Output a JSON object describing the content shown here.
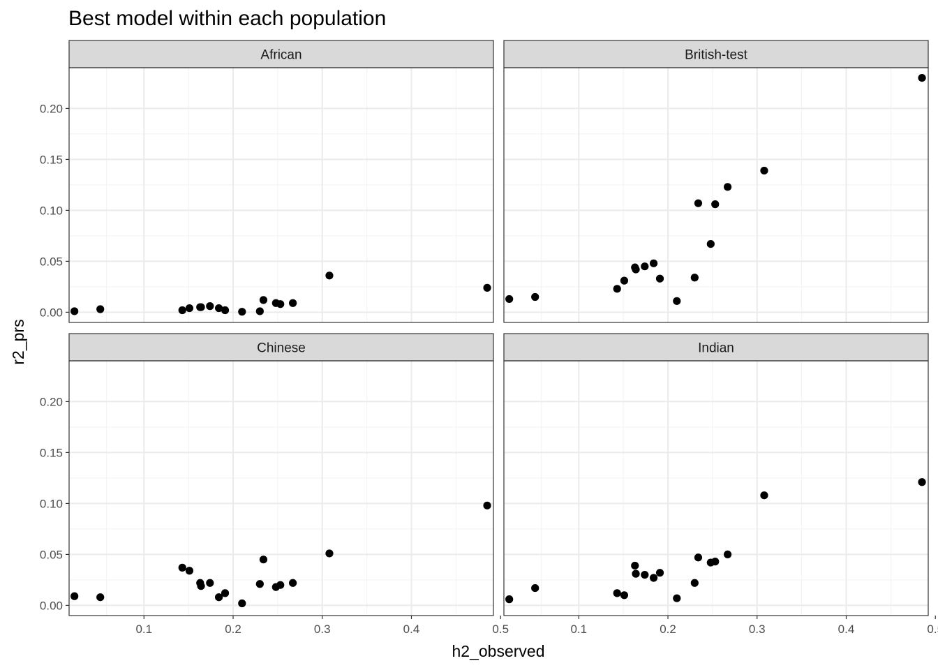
{
  "chart_data": {
    "type": "scatter",
    "title": "Best model within each population",
    "xlabel": "h2_observed",
    "ylabel": "r2_prs",
    "xlim": [
      0.016,
      0.492
    ],
    "ylim": [
      -0.01,
      0.24
    ],
    "x_ticks": [
      0.1,
      0.2,
      0.3,
      0.4,
      0.5
    ],
    "x_tick_labels": [
      "0.1",
      "0.2",
      "0.3",
      "0.4",
      "0.5"
    ],
    "y_ticks": [
      0.0,
      0.05,
      0.1,
      0.15,
      0.2
    ],
    "y_tick_labels": [
      "0.00",
      "0.05",
      "0.10",
      "0.15",
      "0.20"
    ],
    "grid": true,
    "facets": [
      {
        "label": "African",
        "points": [
          [
            0.022,
            0.001
          ],
          [
            0.051,
            0.003
          ],
          [
            0.143,
            0.002
          ],
          [
            0.151,
            0.004
          ],
          [
            0.163,
            0.005
          ],
          [
            0.164,
            0.005
          ],
          [
            0.174,
            0.006
          ],
          [
            0.184,
            0.004
          ],
          [
            0.191,
            0.002
          ],
          [
            0.21,
            0.0005
          ],
          [
            0.23,
            0.001
          ],
          [
            0.234,
            0.012
          ],
          [
            0.248,
            0.009
          ],
          [
            0.253,
            0.008
          ],
          [
            0.267,
            0.009
          ],
          [
            0.308,
            0.036
          ],
          [
            0.485,
            0.024
          ]
        ]
      },
      {
        "label": "British-test",
        "points": [
          [
            0.022,
            0.013
          ],
          [
            0.051,
            0.015
          ],
          [
            0.143,
            0.023
          ],
          [
            0.151,
            0.031
          ],
          [
            0.163,
            0.044
          ],
          [
            0.164,
            0.042
          ],
          [
            0.174,
            0.045
          ],
          [
            0.184,
            0.048
          ],
          [
            0.191,
            0.033
          ],
          [
            0.21,
            0.011
          ],
          [
            0.23,
            0.034
          ],
          [
            0.234,
            0.107
          ],
          [
            0.248,
            0.067
          ],
          [
            0.253,
            0.106
          ],
          [
            0.267,
            0.123
          ],
          [
            0.308,
            0.139
          ],
          [
            0.485,
            0.23
          ]
        ]
      },
      {
        "label": "Chinese",
        "points": [
          [
            0.022,
            0.009
          ],
          [
            0.051,
            0.008
          ],
          [
            0.143,
            0.037
          ],
          [
            0.151,
            0.034
          ],
          [
            0.163,
            0.022
          ],
          [
            0.164,
            0.019
          ],
          [
            0.174,
            0.022
          ],
          [
            0.184,
            0.008
          ],
          [
            0.191,
            0.012
          ],
          [
            0.21,
            0.002
          ],
          [
            0.23,
            0.021
          ],
          [
            0.234,
            0.045
          ],
          [
            0.248,
            0.018
          ],
          [
            0.253,
            0.02
          ],
          [
            0.267,
            0.022
          ],
          [
            0.308,
            0.051
          ],
          [
            0.485,
            0.098
          ]
        ]
      },
      {
        "label": "Indian",
        "points": [
          [
            0.022,
            0.006
          ],
          [
            0.051,
            0.017
          ],
          [
            0.143,
            0.012
          ],
          [
            0.151,
            0.01
          ],
          [
            0.163,
            0.039
          ],
          [
            0.164,
            0.031
          ],
          [
            0.174,
            0.03
          ],
          [
            0.184,
            0.027
          ],
          [
            0.191,
            0.032
          ],
          [
            0.21,
            0.007
          ],
          [
            0.23,
            0.022
          ],
          [
            0.234,
            0.047
          ],
          [
            0.248,
            0.042
          ],
          [
            0.253,
            0.043
          ],
          [
            0.267,
            0.05
          ],
          [
            0.308,
            0.108
          ],
          [
            0.485,
            0.121
          ]
        ]
      }
    ]
  }
}
